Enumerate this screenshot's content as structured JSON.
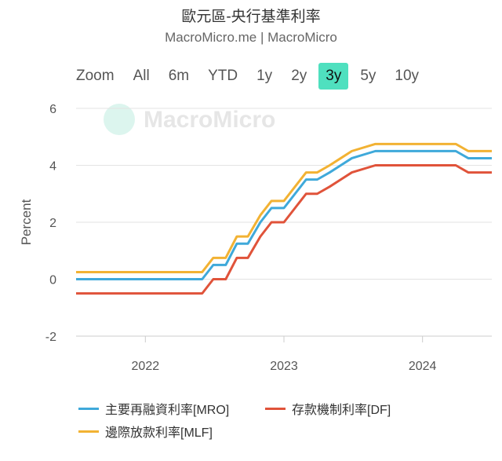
{
  "title": "歐元區-央行基準利率",
  "subtitle": "MacroMicro.me | MacroMicro",
  "watermark": "MacroMicro",
  "range_selector": {
    "label": "Zoom",
    "options": [
      "All",
      "6m",
      "YTD",
      "1y",
      "2y",
      "3y",
      "5y",
      "10y"
    ],
    "selected": "3y"
  },
  "chart_data": {
    "type": "line",
    "title": "歐元區-央行基準利率",
    "xlabel": "",
    "ylabel": "Percent",
    "xlim": [
      2021.5,
      2024.5
    ],
    "ylim": [
      -2,
      6
    ],
    "yticks": [
      -2,
      0,
      2,
      4,
      6
    ],
    "xticks": [
      2022,
      2023,
      2024
    ],
    "grid": true,
    "legend_placement": "bottom",
    "x": [
      2021.5,
      2022.41,
      2022.49,
      2022.58,
      2022.66,
      2022.74,
      2022.83,
      2022.91,
      2023.0,
      2023.08,
      2023.16,
      2023.24,
      2023.33,
      2023.41,
      2023.49,
      2023.66,
      2024.24,
      2024.33,
      2024.5
    ],
    "series": [
      {
        "name": "主要再融資利率[MRO]",
        "color": "#3fa9da",
        "values": [
          0,
          0,
          0.5,
          0.5,
          1.25,
          1.25,
          2.0,
          2.5,
          2.5,
          3.0,
          3.5,
          3.5,
          3.75,
          4.0,
          4.25,
          4.5,
          4.5,
          4.25,
          4.25
        ]
      },
      {
        "name": "存款機制利率[DF]",
        "color": "#e0533a",
        "values": [
          -0.5,
          -0.5,
          0,
          0,
          0.75,
          0.75,
          1.5,
          2.0,
          2.0,
          2.5,
          3.0,
          3.0,
          3.25,
          3.5,
          3.75,
          4.0,
          4.0,
          3.75,
          3.75
        ]
      },
      {
        "name": "邊際放款利率[MLF]",
        "color": "#f2b233",
        "values": [
          0.25,
          0.25,
          0.75,
          0.75,
          1.5,
          1.5,
          2.25,
          2.75,
          2.75,
          3.25,
          3.75,
          3.75,
          4.0,
          4.25,
          4.5,
          4.75,
          4.75,
          4.5,
          4.5
        ]
      }
    ]
  }
}
